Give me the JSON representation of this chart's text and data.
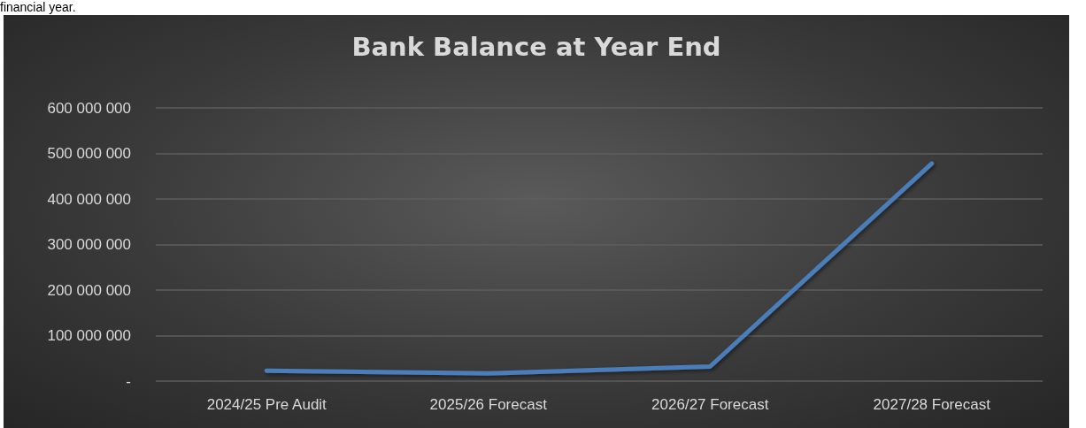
{
  "chart_data": {
    "type": "line",
    "title": "Bank Balance at Year End",
    "annotations": [
      "financial year."
    ],
    "categories": [
      "2024/25 Pre Audit",
      "2025/26 Forecast",
      "2026/27 Forecast",
      "2027/28 Forecast"
    ],
    "series": [
      {
        "color": "#4a7ebb",
        "values": [
          23000000,
          17000000,
          32000000,
          478000000
        ]
      }
    ],
    "ylim": [
      0,
      600000000
    ],
    "yticks": [
      {
        "value": 0,
        "label": "-"
      },
      {
        "value": 100000000,
        "label": "100 000 000"
      },
      {
        "value": 200000000,
        "label": "200 000 000"
      },
      {
        "value": 300000000,
        "label": "300 000 000"
      },
      {
        "value": 400000000,
        "label": "400 000 000"
      },
      {
        "value": 500000000,
        "label": "500 000 000"
      },
      {
        "value": 600000000,
        "label": "600 000 000"
      }
    ],
    "grid": "y",
    "marker": "none",
    "line_style": "solid"
  }
}
